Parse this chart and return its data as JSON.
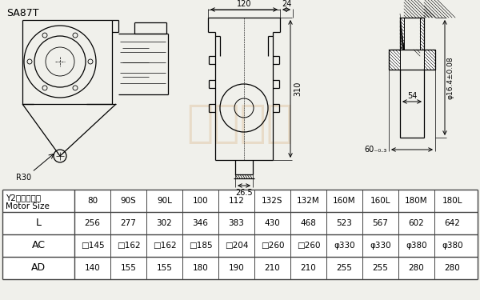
{
  "title": "SA87T",
  "table_header_row1": "Y2电机机座号",
  "table_header_row2": "Motor Size",
  "motor_sizes": [
    "80",
    "90S",
    "90L",
    "100",
    "112",
    "132S",
    "132M",
    "160M",
    "160L",
    "180M",
    "180L"
  ],
  "row_L": [
    "256",
    "277",
    "302",
    "346",
    "383",
    "430",
    "468",
    "523",
    "567",
    "602",
    "642"
  ],
  "row_AC": [
    "□145",
    "□162",
    "□162",
    "□185",
    "□204",
    "□260",
    "□260",
    "φ330",
    "φ330",
    "φ380",
    "φ380"
  ],
  "row_AD": [
    "140",
    "155",
    "155",
    "180",
    "190",
    "210",
    "210",
    "255",
    "255",
    "280",
    "280"
  ],
  "dim_120": "120",
  "dim_24": "24",
  "dim_310": "310",
  "dim_26_5": "26.5",
  "dim_R30": "R30",
  "dim_54": "54",
  "dim_60_text": "60₋₀.₃",
  "dim_16_4": "φ16.4±0.08",
  "bg_color": "#f0f0eb",
  "line_color": "#000000",
  "table_border": "#444444",
  "watermark_color": "#d4a060",
  "watermark_alpha": 0.25
}
